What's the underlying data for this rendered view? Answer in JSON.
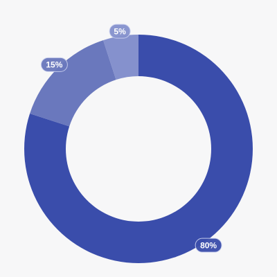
{
  "chart_data": {
    "type": "donut",
    "values": [
      80,
      15,
      5
    ],
    "value_labels": [
      "80%",
      "15%",
      "5%"
    ],
    "colors": [
      "#3a4dab",
      "#6a78bd",
      "#8591cd"
    ]
  }
}
